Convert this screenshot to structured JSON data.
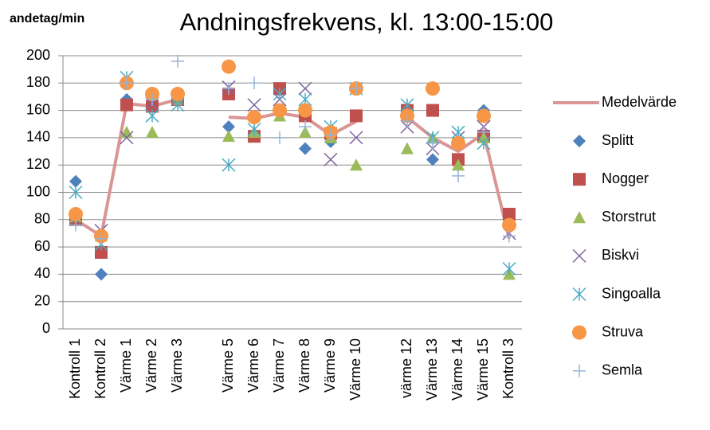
{
  "chart_data": {
    "type": "line",
    "title": "Andningsfrekvens, kl. 13:00-15:00",
    "y_label": "andetag/min",
    "categories": [
      "Kontroll 1",
      "Kontroll 2",
      "Värme 1",
      "Värme 2",
      "Värme 3",
      null,
      "Värme 5",
      "Värme 6",
      "Värme 7",
      "Värme 8",
      "Värme 9",
      "Värme 10",
      null,
      "värme 12",
      "Värme 13",
      "Värme 14",
      "Värme 15",
      "Kontroll 3"
    ],
    "ylim": [
      0,
      200
    ],
    "yticks": [
      0,
      20,
      40,
      60,
      80,
      100,
      120,
      140,
      160,
      180,
      200
    ],
    "grid": true,
    "legend": "right",
    "series": [
      {
        "name": "Medelvärde",
        "color": "#d99694",
        "marker": "line",
        "values": [
          80,
          68,
          165,
          163,
          168,
          null,
          155,
          154,
          158,
          155,
          142,
          152,
          null,
          155,
          140,
          130,
          143,
          66
        ]
      },
      {
        "name": "Splitt",
        "color": "#4f81bd",
        "marker": "diamond",
        "values": [
          108,
          40,
          168,
          165,
          168,
          null,
          148,
          142,
          160,
          132,
          137,
          null,
          null,
          158,
          124,
          135,
          160,
          75
        ]
      },
      {
        "name": "Nogger",
        "color": "#c0504d",
        "marker": "square",
        "values": [
          80,
          56,
          164,
          163,
          168,
          null,
          172,
          141,
          176,
          156,
          143,
          156,
          null,
          160,
          160,
          124,
          141,
          84
        ]
      },
      {
        "name": "Storstrut",
        "color": "#9bbb59",
        "marker": "triangle",
        "values": [
          82,
          68,
          144,
          144,
          168,
          null,
          141,
          144,
          156,
          144,
          140,
          120,
          null,
          132,
          140,
          120,
          140,
          40
        ]
      },
      {
        "name": "Biskvi",
        "color": "#8064a2",
        "marker": "x",
        "values": [
          80,
          72,
          140,
          165,
          168,
          null,
          177,
          164,
          168,
          176,
          124,
          140,
          null,
          148,
          132,
          140,
          148,
          70
        ]
      },
      {
        "name": "Singoalla",
        "color": "#4bacc6",
        "marker": "star",
        "values": [
          100,
          62,
          184,
          156,
          164,
          null,
          120,
          146,
          172,
          168,
          148,
          176,
          null,
          164,
          140,
          144,
          136,
          44
        ]
      },
      {
        "name": "Struva",
        "color": "#f79646",
        "marker": "circle",
        "values": [
          84,
          68,
          180,
          172,
          172,
          null,
          192,
          155,
          160,
          160,
          144,
          176,
          null,
          156,
          176,
          136,
          156,
          76
        ]
      },
      {
        "name": "Semla",
        "color": "#95b3d7",
        "marker": "plus",
        "values": [
          76,
          66,
          180,
          168,
          196,
          null,
          176,
          180,
          140,
          148,
          142,
          176,
          null,
          152,
          136,
          112,
          144,
          68
        ]
      }
    ]
  }
}
